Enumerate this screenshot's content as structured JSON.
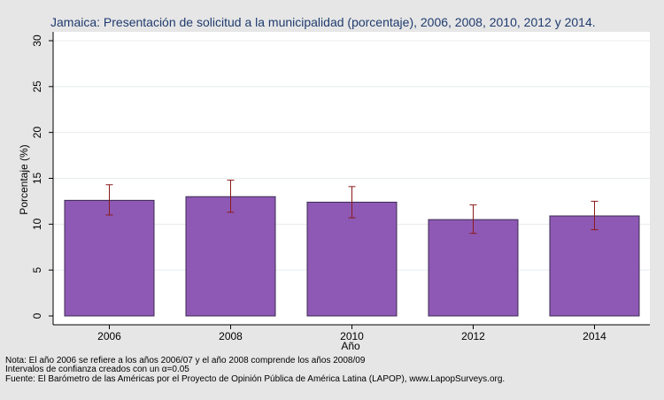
{
  "chart_data": {
    "type": "bar",
    "title": "Jamaica: Presentación de solicitud a la municipalidad (porcentaje), 2006, 2008, 2010, 2012 y 2014.",
    "xlabel": "Año",
    "ylabel": "Porcentaje (%)",
    "categories": [
      "2006",
      "2008",
      "2010",
      "2012",
      "2014"
    ],
    "values": [
      12.6,
      13.0,
      12.4,
      10.5,
      10.9
    ],
    "ci_lower": [
      11.0,
      11.3,
      10.7,
      9.0,
      9.4
    ],
    "ci_upper": [
      14.3,
      14.8,
      14.1,
      12.1,
      12.5
    ],
    "ylim": [
      0,
      30
    ],
    "yticks": [
      0,
      5,
      10,
      15,
      20,
      25,
      30
    ],
    "grid": true,
    "bar_color": "#8e59b4",
    "errorbar_color": "#8b1a1a"
  },
  "notes": [
    "Nota: El año 2006 se refiere a los años 2006/07 y el año 2008 comprende los años 2008/09",
    "Intervalos de confianza creados con un α=0.05",
    "Fuente: El Barómetro de las Américas por el Proyecto de Opinión Pública de América Latina (LAPOP), www.LapopSurveys.org."
  ]
}
